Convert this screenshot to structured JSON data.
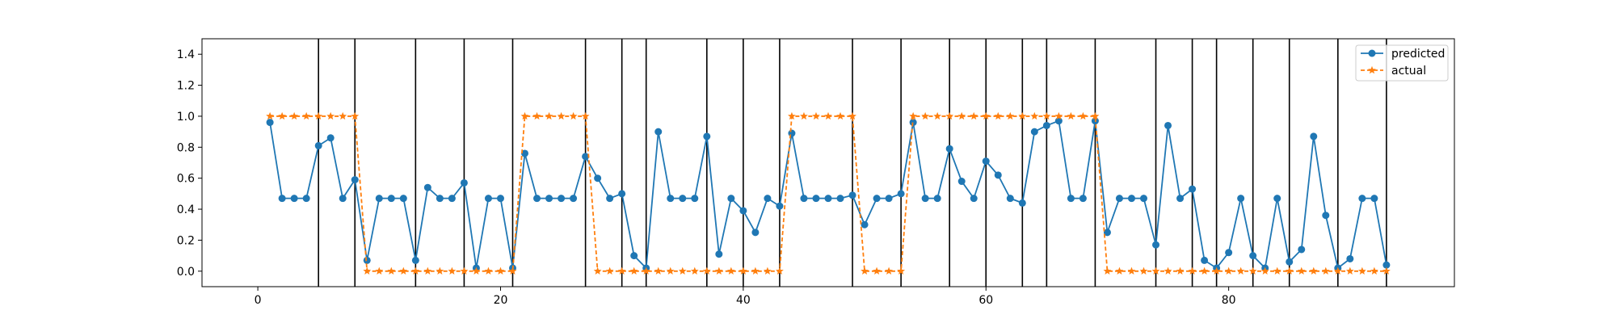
{
  "chart_data": {
    "type": "line",
    "title": "",
    "xlabel": "",
    "ylabel": "",
    "xlim": [
      -4.6,
      98.6
    ],
    "ylim": [
      -0.1,
      1.5
    ],
    "xticks": [
      0,
      20,
      40,
      60,
      80
    ],
    "yticks": [
      0.0,
      0.2,
      0.4,
      0.6,
      0.8,
      1.0,
      1.2,
      1.4
    ],
    "ytick_labels": [
      "0.0",
      "0.2",
      "0.4",
      "0.6",
      "0.8",
      "1.0",
      "1.2",
      "1.4"
    ],
    "grid": false,
    "legend_position": "top-right",
    "vertical_lines_x": [
      5,
      8,
      13,
      17,
      21,
      27,
      30,
      32,
      37,
      40,
      43,
      49,
      53,
      57,
      60,
      63,
      65,
      69,
      74,
      77,
      79,
      82,
      85,
      89,
      93
    ],
    "x": [
      1,
      2,
      3,
      4,
      5,
      6,
      7,
      8,
      9,
      10,
      11,
      12,
      13,
      14,
      15,
      16,
      17,
      18,
      19,
      20,
      21,
      22,
      23,
      24,
      25,
      26,
      27,
      28,
      29,
      30,
      31,
      32,
      33,
      34,
      35,
      36,
      37,
      38,
      39,
      40,
      41,
      42,
      43,
      44,
      45,
      46,
      47,
      48,
      49,
      50,
      51,
      52,
      53,
      54,
      55,
      56,
      57,
      58,
      59,
      60,
      61,
      62,
      63,
      64,
      65,
      66,
      67,
      68,
      69,
      70,
      71,
      72,
      73,
      74,
      75,
      76,
      77,
      78,
      79,
      80,
      81,
      82,
      83,
      84,
      85,
      86,
      87,
      88,
      89,
      90,
      91,
      92,
      93
    ],
    "series": [
      {
        "name": "predicted",
        "color": "#1f77b4",
        "marker": "circle",
        "linestyle": "solid",
        "values": [
          0.96,
          0.47,
          0.47,
          0.47,
          0.81,
          0.86,
          0.47,
          0.59,
          0.07,
          0.47,
          0.47,
          0.47,
          0.07,
          0.54,
          0.47,
          0.47,
          0.57,
          0.02,
          0.47,
          0.47,
          0.02,
          0.76,
          0.47,
          0.47,
          0.47,
          0.47,
          0.74,
          0.6,
          0.47,
          0.5,
          0.1,
          0.02,
          0.9,
          0.47,
          0.47,
          0.47,
          0.87,
          0.11,
          0.47,
          0.39,
          0.25,
          0.47,
          0.42,
          0.89,
          0.47,
          0.47,
          0.47,
          0.47,
          0.49,
          0.3,
          0.47,
          0.47,
          0.5,
          0.96,
          0.47,
          0.47,
          0.79,
          0.58,
          0.47,
          0.71,
          0.62,
          0.47,
          0.44,
          0.9,
          0.94,
          0.97,
          0.47,
          0.47,
          0.97,
          0.25,
          0.47,
          0.47,
          0.47,
          0.17,
          0.94,
          0.47,
          0.53,
          0.07,
          0.02,
          0.12,
          0.47,
          0.1,
          0.02,
          0.47,
          0.06,
          0.14,
          0.87,
          0.36,
          0.02,
          0.08,
          0.47,
          0.47,
          0.04
        ]
      },
      {
        "name": "actual",
        "color": "#ff7f0e",
        "marker": "star",
        "linestyle": "dashed",
        "values": [
          1,
          1,
          1,
          1,
          1,
          1,
          1,
          1,
          0,
          0,
          0,
          0,
          0,
          0,
          0,
          0,
          0,
          0,
          0,
          0,
          0,
          1,
          1,
          1,
          1,
          1,
          1,
          0,
          0,
          0,
          0,
          0,
          0,
          0,
          0,
          0,
          0,
          0,
          0,
          0,
          0,
          0,
          0,
          1,
          1,
          1,
          1,
          1,
          1,
          0,
          0,
          0,
          0,
          1,
          1,
          1,
          1,
          1,
          1,
          1,
          1,
          1,
          1,
          1,
          1,
          1,
          1,
          1,
          1,
          0,
          0,
          0,
          0,
          0,
          0,
          0,
          0,
          0,
          0,
          0,
          0,
          0,
          0,
          0,
          0,
          0,
          0,
          0,
          0,
          0,
          0,
          0,
          0
        ]
      }
    ]
  }
}
